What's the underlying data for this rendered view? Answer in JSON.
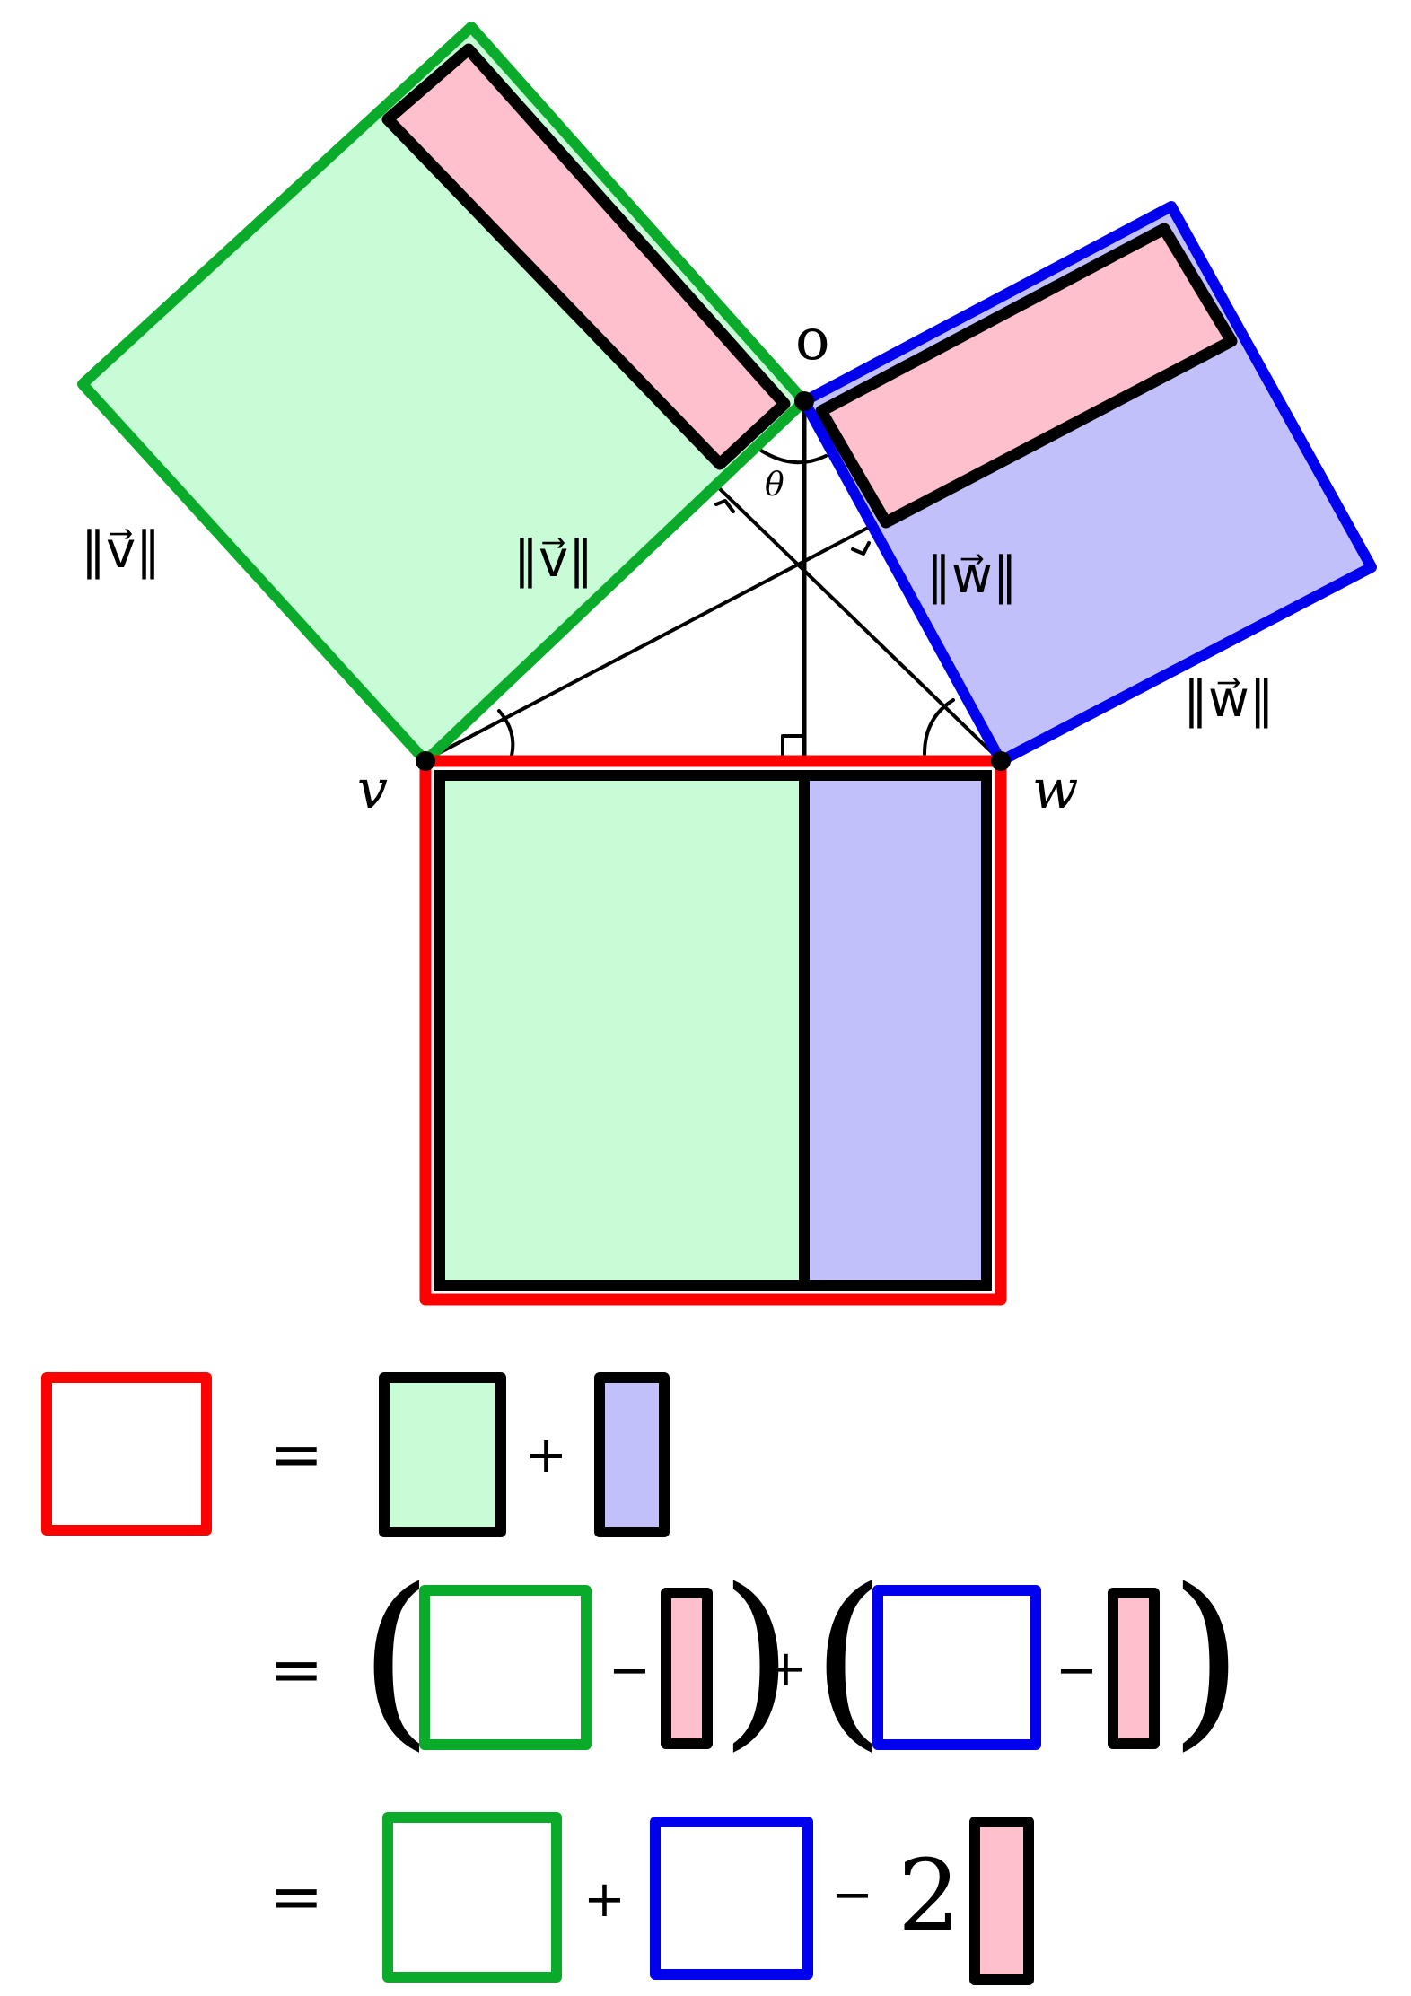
{
  "labels": {
    "origin": "o",
    "angle": "θ",
    "point_v": "v",
    "point_w": "w",
    "norm_v": "‖v⃗‖",
    "norm_w": "‖w⃗‖"
  },
  "equation": {
    "equals": "=",
    "plus": "+",
    "minus": "−",
    "two": "2",
    "open_paren": "(",
    "close_paren": ")"
  },
  "colors": {
    "red": "#ff0000",
    "green": "#0aab2a",
    "blue": "#0000ee",
    "light_green": "#c8fcd6",
    "light_blue": "#c2c0fb",
    "pink": "#ffc0cd",
    "black": "#000000"
  }
}
